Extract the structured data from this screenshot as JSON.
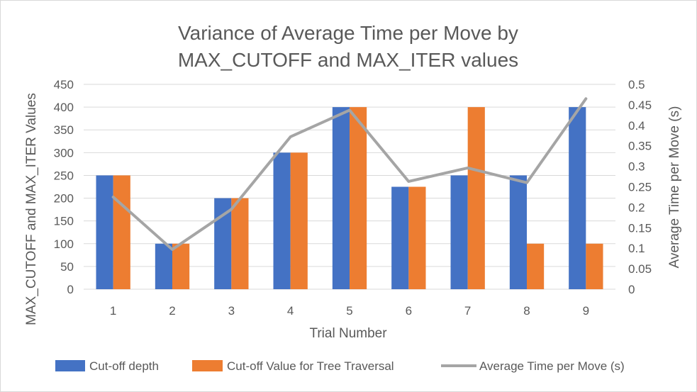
{
  "chart_data": {
    "type": "bar",
    "title_lines": [
      "Variance of Average Time per Move by",
      "MAX_CUTOFF and MAX_ITER values"
    ],
    "xlabel": "Trial Number",
    "ylabel": "MAX_CUTOFF and MAX_ITER Values",
    "y2label": "Average Time per Move (s)",
    "categories": [
      "1",
      "2",
      "3",
      "4",
      "5",
      "6",
      "7",
      "8",
      "9"
    ],
    "ylim": [
      0,
      450
    ],
    "y_ticks": [
      "0",
      "50",
      "100",
      "150",
      "200",
      "250",
      "300",
      "350",
      "400",
      "450"
    ],
    "y2lim": [
      0,
      0.5
    ],
    "y2_ticks": [
      "0",
      "0.05",
      "0.1",
      "0.15",
      "0.2",
      "0.25",
      "0.3",
      "0.35",
      "0.4",
      "0.45",
      "0.5"
    ],
    "grid": true,
    "legend_position": "bottom",
    "series": [
      {
        "name": "Cut-off depth",
        "kind": "bar",
        "color": "#4472C4",
        "values": [
          250,
          100,
          200,
          300,
          400,
          225,
          250,
          250,
          400
        ]
      },
      {
        "name": "Cut-off Value for Tree Traversal",
        "kind": "bar",
        "color": "#ED7D31",
        "values": [
          250,
          100,
          200,
          300,
          400,
          225,
          400,
          100,
          100
        ]
      },
      {
        "name": "Average Time per Move (s)",
        "kind": "line",
        "axis": "secondary",
        "color": "#A5A5A5",
        "values": [
          0.225,
          0.097,
          0.195,
          0.372,
          0.437,
          0.263,
          0.296,
          0.26,
          0.465
        ]
      }
    ]
  }
}
